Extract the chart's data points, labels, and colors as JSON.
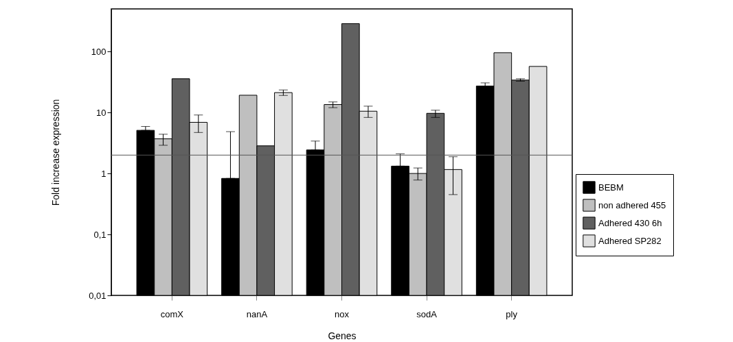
{
  "chart_data": {
    "type": "bar",
    "xlabel": "Genes",
    "ylabel": "Fold increase expression",
    "log": "y",
    "grid": false,
    "legend": "right",
    "categories": [
      "comX",
      "nanA",
      "nox",
      "sodA",
      "ply"
    ],
    "ylim": [
      0.01,
      500
    ],
    "yticks": [
      {
        "value": 0.01,
        "label": "0,01"
      },
      {
        "value": 0.1,
        "label": "0,1"
      },
      1,
      10,
      100
    ],
    "series": [
      {
        "name": "BEBM",
        "color": "#000000",
        "values": [
          5.1,
          0.83,
          2.43,
          1.32,
          27.2
        ],
        "errors": [
          [
            5.1,
            5.9
          ],
          [
            0.83,
            4.85
          ],
          [
            2.43,
            3.4
          ],
          [
            1.32,
            2.1
          ],
          [
            27.2,
            30.6
          ]
        ]
      },
      {
        "name": "non adhered 455",
        "color": "#bfbfbf",
        "values": [
          3.7,
          19.2,
          13.5,
          1.0,
          95.7
        ],
        "errors": [
          [
            2.9,
            4.4
          ],
          null,
          [
            12.0,
            14.9
          ],
          [
            0.78,
            1.23
          ],
          null
        ]
      },
      {
        "name": "Adhered 430 6h",
        "color": "#606060",
        "values": [
          35.8,
          2.84,
          287,
          9.7,
          34
        ],
        "errors": [
          null,
          null,
          null,
          [
            8.3,
            10.9
          ],
          [
            32.6,
            35.8
          ]
        ]
      },
      {
        "name": "Adhered SP282",
        "color": "#e0e0e0",
        "values": [
          6.9,
          21.2,
          10.5,
          1.16,
          57
        ],
        "errors": [
          [
            4.7,
            9.1
          ],
          [
            19.0,
            23.4
          ],
          [
            8.3,
            12.7
          ],
          [
            0.45,
            1.88
          ],
          null
        ]
      }
    ],
    "ref_lines": [
      {
        "axis": "y",
        "value": 2,
        "color": "#555555"
      }
    ]
  }
}
